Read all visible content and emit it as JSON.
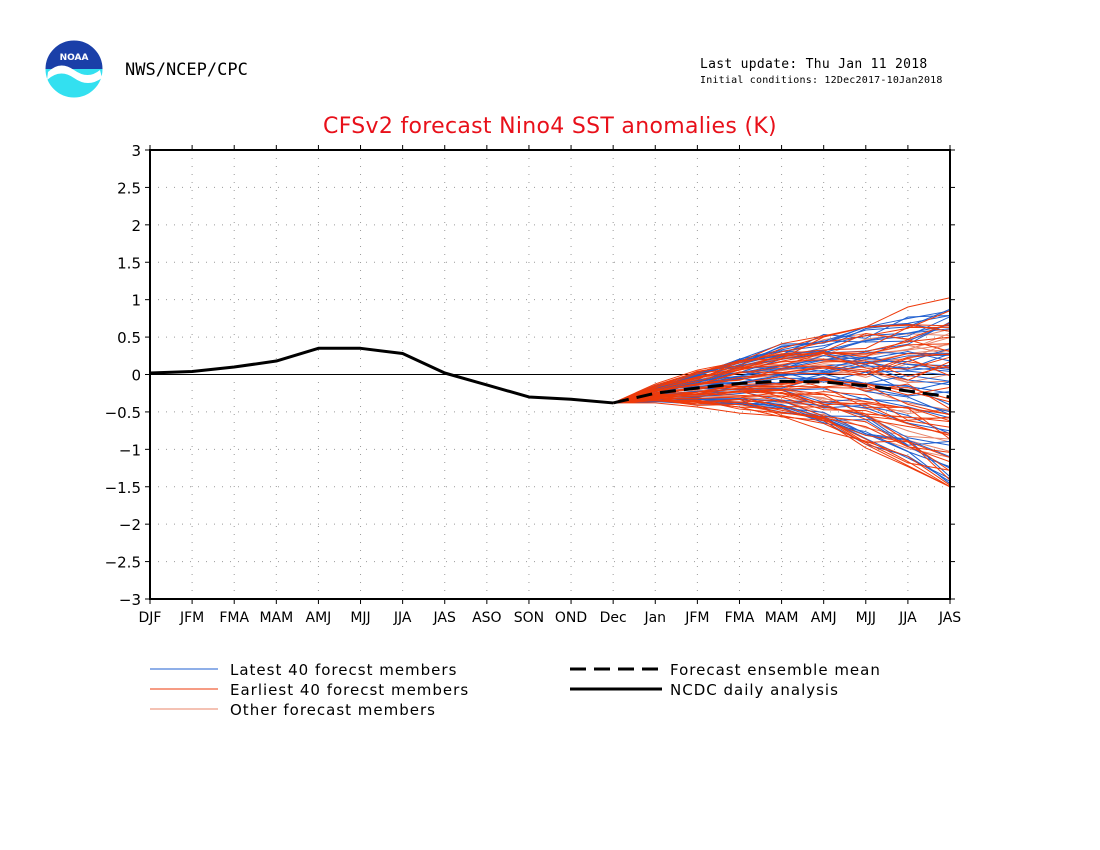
{
  "header": {
    "agency": "NWS/NCEP/CPC",
    "last_update": "Last update: Thu Jan 11 2018",
    "initial_conditions": "Initial conditions: 12Dec2017-10Jan2018",
    "logo_text": "NOAA"
  },
  "colors": {
    "title": "#e8101a",
    "latest": "#1f5fd0",
    "earliest": "#ee3a0a",
    "other": "#e8846a",
    "analysis": "#000000",
    "logo_top": "#1a3fa8",
    "logo_bottom": "#33e0f0"
  },
  "legend": {
    "latest": "Latest 40 forecst members",
    "earliest": "Earliest 40 forecst members",
    "other": "Other forecast members",
    "mean": "Forecast ensemble mean",
    "analysis": "NCDC daily analysis"
  },
  "chart_data": {
    "type": "line",
    "title": "CFSv2 forecast Nino4 SST anomalies (K)",
    "x_ticks": [
      "DJF",
      "JFM",
      "FMA",
      "MAM",
      "AMJ",
      "MJJ",
      "JJA",
      "JAS",
      "ASO",
      "SON",
      "OND",
      "Dec",
      "Jan",
      "JFM",
      "FMA",
      "MAM",
      "AMJ",
      "MJJ",
      "JJA",
      "JAS"
    ],
    "ylim": [
      -3,
      3
    ],
    "y_ticks": [
      "3",
      "2.5",
      "2",
      "1.5",
      "1",
      "0.5",
      "0",
      "-0.5",
      "-1",
      "-1.5",
      "-2",
      "-2.5",
      "-3"
    ],
    "grid": true,
    "zero_line": true,
    "series": [
      {
        "name": "NCDC daily analysis",
        "style": "solid-thick",
        "x": [
          0,
          1,
          2,
          3,
          4,
          5,
          6,
          7,
          8,
          9,
          10,
          11
        ],
        "values": [
          0.02,
          0.04,
          0.1,
          0.18,
          0.35,
          0.35,
          0.28,
          0.02,
          -0.14,
          -0.3,
          -0.33,
          -0.38
        ]
      },
      {
        "name": "Forecast ensemble mean",
        "style": "dashed-thick",
        "x": [
          11,
          12,
          13,
          14,
          15,
          16,
          17,
          18,
          19
        ],
        "values": [
          -0.38,
          -0.25,
          -0.18,
          -0.12,
          -0.09,
          -0.1,
          -0.15,
          -0.22,
          -0.3
        ]
      }
    ],
    "ensemble": {
      "start_x": 11,
      "start_value": -0.38,
      "end_x": 19,
      "latest_count": 40,
      "earliest_count": 40,
      "other_count": 20,
      "spread_at_end": [
        -1.5,
        1.05
      ]
    }
  }
}
